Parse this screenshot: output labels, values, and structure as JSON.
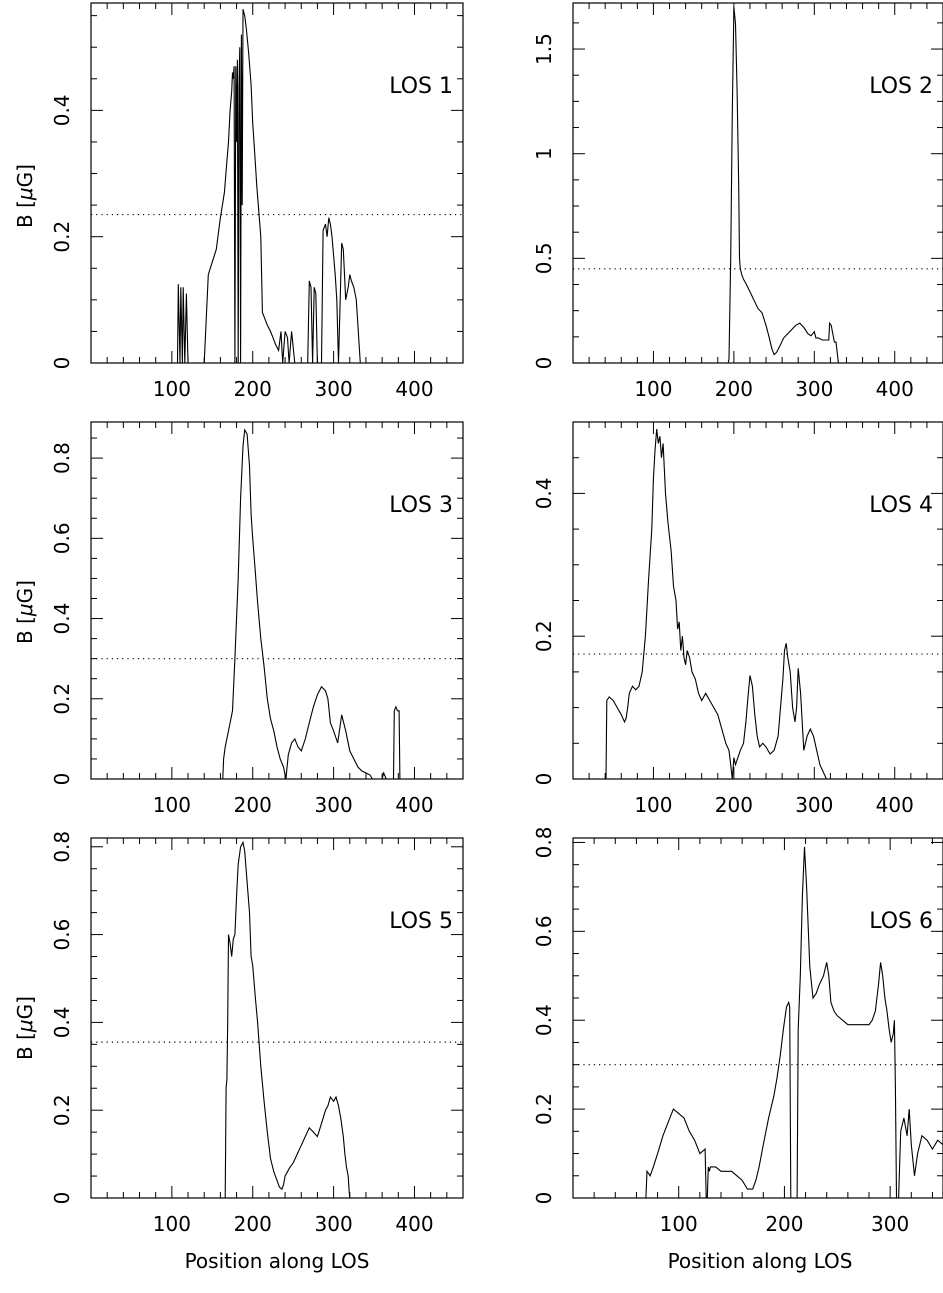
{
  "figure": {
    "xlabel": "Position along LOS",
    "ylabel": "B [",
    "ylabel_mu": "μ",
    "ylabel_unit": "G]"
  },
  "chart_data": [
    {
      "type": "line",
      "label": "LOS 1",
      "xlim": [
        0,
        460
      ],
      "ylim": [
        0,
        0.57
      ],
      "xticks": [
        100,
        200,
        300,
        400
      ],
      "yticks": [
        0,
        0.2,
        0.4
      ],
      "ytick_labels": [
        "0",
        "0.2",
        "0.4"
      ],
      "dotted_level": 0.235,
      "x": [
        0,
        107,
        108,
        110,
        111,
        113,
        114,
        116,
        118,
        120,
        121,
        140,
        145,
        150,
        155,
        160,
        165,
        168,
        170,
        172,
        174,
        175,
        176,
        177,
        178,
        179,
        180,
        181,
        182,
        183,
        184,
        185,
        186,
        187,
        188,
        190,
        192,
        195,
        198,
        200,
        202,
        205,
        210,
        212,
        215,
        218,
        222,
        225,
        228,
        232,
        235,
        237,
        240,
        243,
        245,
        248,
        252,
        255,
        258,
        262,
        268,
        270,
        272,
        274,
        276,
        278,
        280,
        282,
        285,
        287,
        290,
        292,
        294,
        296,
        298,
        300,
        302,
        304,
        306,
        310,
        312,
        315,
        318,
        320,
        322,
        325,
        328,
        330,
        333,
        335,
        460
      ],
      "y": [
        0,
        0,
        0.125,
        0,
        0.12,
        0,
        0.12,
        0,
        0.11,
        0,
        0,
        0,
        0.14,
        0.16,
        0.18,
        0.23,
        0.27,
        0.32,
        0.35,
        0.4,
        0.43,
        0.46,
        0.45,
        0.47,
        0,
        0.47,
        0.35,
        0.48,
        0,
        0.44,
        0.5,
        0,
        0.52,
        0.25,
        0.56,
        0.55,
        0.53,
        0.49,
        0.44,
        0.38,
        0.34,
        0.28,
        0.2,
        0.08,
        0.07,
        0.06,
        0.05,
        0.04,
        0.03,
        0.02,
        0.05,
        0,
        0.05,
        0.04,
        0,
        0.05,
        0,
        0,
        0,
        0,
        0,
        0.13,
        0.12,
        0,
        0.12,
        0.11,
        0,
        0,
        0,
        0.21,
        0.22,
        0.2,
        0.23,
        0.22,
        0.2,
        0.17,
        0.14,
        0.1,
        0,
        0.19,
        0.18,
        0.1,
        0.12,
        0.14,
        0.13,
        0.12,
        0.1,
        0.06,
        0,
        0,
        0
      ]
    },
    {
      "type": "line",
      "label": "LOS 2",
      "xlim": [
        0,
        460
      ],
      "ylim": [
        0,
        1.72
      ],
      "xticks": [
        100,
        200,
        300,
        400
      ],
      "yticks": [
        0,
        0.5,
        1,
        1.5
      ],
      "ytick_labels": [
        "0",
        "0.5",
        "1",
        "1.5"
      ],
      "dotted_level": 0.45,
      "x": [
        0,
        193,
        194,
        196,
        198,
        200,
        202,
        204,
        206,
        207,
        208,
        210,
        212,
        215,
        220,
        225,
        230,
        235,
        240,
        244,
        247,
        250,
        253,
        257,
        262,
        267,
        272,
        277,
        282,
        287,
        292,
        296,
        300,
        302,
        305,
        310,
        318,
        319,
        321,
        323,
        325,
        327,
        330,
        460
      ],
      "y": [
        0,
        0,
        0.02,
        0.5,
        1.2,
        1.7,
        1.62,
        1.3,
        0.85,
        0.5,
        0.45,
        0.42,
        0.4,
        0.38,
        0.34,
        0.3,
        0.26,
        0.24,
        0.18,
        0.12,
        0.07,
        0.04,
        0.05,
        0.08,
        0.12,
        0.14,
        0.16,
        0.18,
        0.19,
        0.17,
        0.14,
        0.13,
        0.15,
        0.12,
        0.12,
        0.11,
        0.11,
        0.19,
        0.18,
        0.14,
        0.1,
        0.1,
        0,
        0
      ]
    },
    {
      "type": "line",
      "label": "LOS 3",
      "xlim": [
        0,
        460
      ],
      "ylim": [
        0,
        0.89
      ],
      "xticks": [
        100,
        200,
        300,
        400
      ],
      "yticks": [
        0,
        0.2,
        0.4,
        0.6,
        0.8
      ],
      "ytick_labels": [
        "0",
        "0.2",
        "0.4",
        "0.6",
        "0.8"
      ],
      "dotted_level": 0.3,
      "x": [
        0,
        163,
        164,
        166,
        170,
        175,
        178,
        182,
        185,
        188,
        190,
        193,
        196,
        198,
        200,
        203,
        206,
        210,
        214,
        218,
        222,
        226,
        230,
        234,
        238,
        241,
        244,
        248,
        252,
        256,
        260,
        265,
        270,
        275,
        280,
        285,
        290,
        293,
        296,
        300,
        305,
        310,
        315,
        320,
        325,
        330,
        335,
        340,
        345,
        348,
        350,
        360,
        362,
        365,
        374,
        375,
        377,
        379,
        381,
        382,
        460
      ],
      "y": [
        0,
        0,
        0.05,
        0.08,
        0.12,
        0.17,
        0.3,
        0.5,
        0.7,
        0.83,
        0.87,
        0.86,
        0.78,
        0.66,
        0.6,
        0.52,
        0.44,
        0.35,
        0.28,
        0.2,
        0.15,
        0.12,
        0.08,
        0.05,
        0.03,
        0,
        0.06,
        0.09,
        0.1,
        0.08,
        0.07,
        0.1,
        0.14,
        0.18,
        0.21,
        0.23,
        0.22,
        0.2,
        0.14,
        0.12,
        0.09,
        0.16,
        0.12,
        0.07,
        0.05,
        0.03,
        0.02,
        0.015,
        0.01,
        0,
        0,
        0,
        0.015,
        0,
        0,
        0.17,
        0.18,
        0.17,
        0.17,
        0,
        0
      ]
    },
    {
      "type": "line",
      "label": "LOS 4",
      "xlim": [
        0,
        460
      ],
      "ylim": [
        0,
        0.5
      ],
      "xticks": [
        100,
        200,
        300,
        400
      ],
      "yticks": [
        0,
        0.2,
        0.4
      ],
      "ytick_labels": [
        "0",
        "0.2",
        "0.4"
      ],
      "dotted_level": 0.175,
      "x": [
        0,
        41,
        42,
        45,
        50,
        55,
        60,
        62,
        64,
        66,
        68,
        70,
        74,
        78,
        82,
        86,
        90,
        94,
        98,
        100,
        102,
        104,
        106,
        108,
        110,
        112,
        115,
        118,
        122,
        125,
        128,
        130,
        132,
        134,
        136,
        138,
        140,
        142,
        145,
        148,
        152,
        156,
        160,
        165,
        170,
        175,
        180,
        185,
        190,
        194,
        196,
        198,
        200,
        202,
        205,
        208,
        212,
        215,
        218,
        220,
        223,
        226,
        229,
        232,
        236,
        240,
        245,
        250,
        255,
        258,
        261,
        263,
        265,
        267,
        270,
        273,
        276,
        278,
        280,
        283,
        287,
        291,
        295,
        299,
        303,
        307,
        311,
        315,
        460
      ],
      "y": [
        0,
        0,
        0.11,
        0.115,
        0.11,
        0.1,
        0.09,
        0.085,
        0.08,
        0.085,
        0.1,
        0.12,
        0.13,
        0.125,
        0.13,
        0.15,
        0.2,
        0.28,
        0.35,
        0.42,
        0.46,
        0.49,
        0.47,
        0.48,
        0.45,
        0.47,
        0.4,
        0.36,
        0.32,
        0.27,
        0.25,
        0.21,
        0.22,
        0.18,
        0.2,
        0.17,
        0.16,
        0.18,
        0.17,
        0.15,
        0.14,
        0.12,
        0.11,
        0.12,
        0.11,
        0.1,
        0.09,
        0.07,
        0.05,
        0.04,
        0.02,
        0,
        0.03,
        0.02,
        0.03,
        0.04,
        0.05,
        0.08,
        0.12,
        0.145,
        0.13,
        0.09,
        0.06,
        0.045,
        0.05,
        0.045,
        0.035,
        0.04,
        0.06,
        0.1,
        0.14,
        0.18,
        0.19,
        0.17,
        0.15,
        0.1,
        0.08,
        0.1,
        0.155,
        0.12,
        0.04,
        0.06,
        0.07,
        0.06,
        0.04,
        0.02,
        0.01,
        0,
        0
      ]
    },
    {
      "type": "line",
      "label": "LOS 5",
      "xlim": [
        0,
        460
      ],
      "ylim": [
        0,
        0.82
      ],
      "xticks": [
        100,
        200,
        300,
        400
      ],
      "yticks": [
        0,
        0.2,
        0.4,
        0.6,
        0.8
      ],
      "ytick_labels": [
        "0",
        "0.2",
        "0.4",
        "0.6",
        "0.8"
      ],
      "dotted_level": 0.355,
      "x": [
        0,
        166,
        167,
        168,
        169,
        170,
        172,
        174,
        176,
        178,
        180,
        182,
        185,
        188,
        190,
        193,
        196,
        198,
        200,
        203,
        206,
        210,
        214,
        218,
        222,
        226,
        230,
        233,
        236,
        238,
        240,
        243,
        246,
        250,
        255,
        260,
        265,
        270,
        275,
        280,
        285,
        290,
        293,
        296,
        300,
        303,
        306,
        309,
        312,
        314,
        316,
        318,
        319,
        320,
        460
      ],
      "y": [
        0,
        0,
        0.25,
        0.27,
        0.4,
        0.6,
        0.58,
        0.55,
        0.59,
        0.6,
        0.69,
        0.76,
        0.8,
        0.81,
        0.79,
        0.72,
        0.65,
        0.55,
        0.53,
        0.46,
        0.4,
        0.3,
        0.22,
        0.15,
        0.09,
        0.06,
        0.04,
        0.025,
        0.02,
        0.03,
        0.05,
        0.06,
        0.07,
        0.08,
        0.1,
        0.12,
        0.14,
        0.16,
        0.15,
        0.14,
        0.17,
        0.2,
        0.21,
        0.23,
        0.22,
        0.23,
        0.21,
        0.18,
        0.14,
        0.1,
        0.07,
        0.05,
        0.02,
        0,
        0
      ]
    },
    {
      "type": "line",
      "label": "LOS 6",
      "xlim": [
        0,
        350
      ],
      "ylim": [
        0,
        0.81
      ],
      "xticks": [
        100,
        200,
        300
      ],
      "yticks": [
        0,
        0.2,
        0.4,
        0.6,
        0.8
      ],
      "ytick_labels": [
        "0",
        "0.2",
        "0.4",
        "0.6",
        "0.8"
      ],
      "dotted_level": 0.3,
      "x": [
        0,
        69,
        70,
        73,
        76,
        80,
        85,
        90,
        95,
        100,
        105,
        110,
        115,
        120,
        125,
        126,
        127,
        128,
        129,
        130,
        135,
        140,
        145,
        150,
        155,
        160,
        165,
        170,
        173,
        176,
        180,
        185,
        190,
        193,
        196,
        199,
        202,
        204,
        205,
        206,
        207,
        212,
        213,
        215,
        217,
        219,
        221,
        224,
        227,
        230,
        233,
        237,
        240,
        242,
        244,
        247,
        250,
        255,
        260,
        265,
        270,
        275,
        280,
        283,
        286,
        289,
        291,
        293,
        295,
        297,
        299,
        301,
        303,
        304,
        305,
        306,
        308,
        310,
        313,
        316,
        318,
        320,
        323,
        326,
        330,
        335,
        340,
        345,
        350
      ],
      "y": [
        0,
        0,
        0.06,
        0.05,
        0.07,
        0.1,
        0.14,
        0.17,
        0.2,
        0.19,
        0.18,
        0.15,
        0.13,
        0.1,
        0.11,
        0,
        0,
        0.07,
        0.06,
        0.07,
        0.07,
        0.06,
        0.06,
        0.06,
        0.05,
        0.04,
        0.02,
        0.02,
        0.04,
        0.07,
        0.12,
        0.18,
        0.23,
        0.27,
        0.32,
        0.38,
        0.43,
        0.44,
        0.43,
        0,
        0,
        0,
        0.38,
        0.5,
        0.68,
        0.79,
        0.7,
        0.52,
        0.45,
        0.46,
        0.48,
        0.5,
        0.53,
        0.5,
        0.44,
        0.42,
        0.41,
        0.4,
        0.39,
        0.39,
        0.39,
        0.39,
        0.39,
        0.4,
        0.42,
        0.48,
        0.53,
        0.5,
        0.45,
        0.42,
        0.38,
        0.35,
        0.37,
        0.4,
        0.25,
        0,
        0,
        0.15,
        0.18,
        0.14,
        0.2,
        0.12,
        0.05,
        0.1,
        0.14,
        0.13,
        0.11,
        0.13,
        0.12
      ]
    }
  ]
}
